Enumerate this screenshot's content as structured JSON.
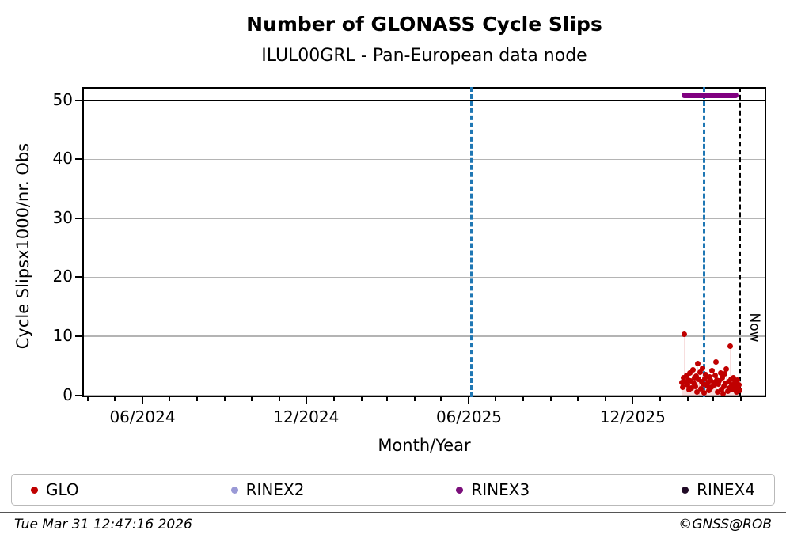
{
  "title": "Number of GLONASS Cycle Slips",
  "subtitle": "ILUL00GRL - Pan-European data node",
  "now_label": "Now",
  "chart_data": {
    "type": "scatter",
    "title": "Number of GLONASS Cycle Slips",
    "subtitle": "ILUL00GRL - Pan-European data node",
    "xlabel": "Month/Year",
    "ylabel": "Cycle Slipsx1000/nr. Obs",
    "grid": "horizontal-gray",
    "legend_position": "bottom",
    "x_range": [
      "2024-03-26",
      "2026-04-29"
    ],
    "ylim": [
      -0.33,
      52.27
    ],
    "y_ticks": [
      0,
      10,
      20,
      30,
      40,
      50
    ],
    "x_ticks": [
      {
        "label": "06/2024",
        "date": "2024-06-01"
      },
      {
        "label": "12/2024",
        "date": "2024-12-01"
      },
      {
        "label": "06/2025",
        "date": "2025-06-01"
      },
      {
        "label": "12/2025",
        "date": "2025-12-01"
      }
    ],
    "hline": {
      "y": 50,
      "color": "#000000"
    },
    "vlines": [
      {
        "date": "2025-06-04",
        "color": "#1f77b4",
        "style": "dashed",
        "width": 3
      },
      {
        "date": "2026-02-19",
        "color": "#1f77b4",
        "style": "dashed",
        "width": 3
      },
      {
        "date": "2026-03-31",
        "color": "#000000",
        "style": "dashed",
        "width": 2.5,
        "label": "Now"
      }
    ],
    "rinex3_bar": {
      "start": "2026-01-25",
      "end": "2026-03-29",
      "y": 50.9,
      "color": "#800080"
    },
    "series": [
      {
        "name": "GLO",
        "color": "#c00000",
        "stem_color": "rgba(192,0,0,0.13)",
        "points": [
          [
            "2026-01-25",
            2.1
          ],
          [
            "2026-01-26",
            1.4
          ],
          [
            "2026-01-27",
            3.0
          ],
          [
            "2026-01-28",
            10.4
          ],
          [
            "2026-01-29",
            2.2
          ],
          [
            "2026-01-30",
            3.4
          ],
          [
            "2026-01-31",
            1.8
          ],
          [
            "2026-02-01",
            2.6
          ],
          [
            "2026-02-02",
            0.9
          ],
          [
            "2026-02-03",
            3.7
          ],
          [
            "2026-02-04",
            2.4
          ],
          [
            "2026-02-05",
            1.2
          ],
          [
            "2026-02-06",
            4.3
          ],
          [
            "2026-02-07",
            2.0
          ],
          [
            "2026-02-08",
            2.9
          ],
          [
            "2026-02-09",
            1.5
          ],
          [
            "2026-02-10",
            3.2
          ],
          [
            "2026-02-11",
            0.6
          ],
          [
            "2026-02-12",
            5.4
          ],
          [
            "2026-02-13",
            2.7
          ],
          [
            "2026-02-14",
            3.9
          ],
          [
            "2026-02-15",
            1.1
          ],
          [
            "2026-02-16",
            2.3
          ],
          [
            "2026-02-17",
            4.6
          ],
          [
            "2026-02-18",
            1.9
          ],
          [
            "2026-02-19",
            0.4
          ],
          [
            "2026-02-20",
            2.8
          ],
          [
            "2026-02-21",
            3.5
          ],
          [
            "2026-02-22",
            1.6
          ],
          [
            "2026-02-23",
            2.1
          ],
          [
            "2026-02-24",
            0.8
          ],
          [
            "2026-02-25",
            3.1
          ],
          [
            "2026-02-26",
            2.5
          ],
          [
            "2026-02-27",
            1.3
          ],
          [
            "2026-02-28",
            4.1
          ],
          [
            "2026-03-01",
            2.2
          ],
          [
            "2026-03-02",
            1.7
          ],
          [
            "2026-03-03",
            3.3
          ],
          [
            "2026-03-04",
            5.7
          ],
          [
            "2026-03-05",
            2.6
          ],
          [
            "2026-03-06",
            0.5
          ],
          [
            "2026-03-07",
            1.9
          ],
          [
            "2026-03-08",
            2.4
          ],
          [
            "2026-03-09",
            3.8
          ],
          [
            "2026-03-10",
            1.0
          ],
          [
            "2026-03-11",
            2.9
          ],
          [
            "2026-03-12",
            0.3
          ],
          [
            "2026-03-13",
            1.5
          ],
          [
            "2026-03-14",
            3.6
          ],
          [
            "2026-03-15",
            2.0
          ],
          [
            "2026-03-16",
            4.4
          ],
          [
            "2026-03-17",
            0.7
          ],
          [
            "2026-03-18",
            2.3
          ],
          [
            "2026-03-19",
            1.2
          ],
          [
            "2026-03-20",
            8.3
          ],
          [
            "2026-03-21",
            2.7
          ],
          [
            "2026-03-22",
            1.8
          ],
          [
            "2026-03-23",
            0.9
          ],
          [
            "2026-03-24",
            3.0
          ],
          [
            "2026-03-25",
            2.1
          ],
          [
            "2026-03-26",
            1.4
          ],
          [
            "2026-03-27",
            0.6
          ],
          [
            "2026-03-28",
            2.5
          ],
          [
            "2026-03-29",
            1.1
          ],
          [
            "2026-03-30",
            1.7
          ],
          [
            "2026-03-31",
            0.8
          ]
        ]
      }
    ]
  },
  "legend": {
    "items": [
      {
        "label": "GLO",
        "color": "#c00000"
      },
      {
        "label": "RINEX2",
        "color": "#9a99d6"
      },
      {
        "label": "RINEX3",
        "color": "#7b0f7b"
      },
      {
        "label": "RINEX4",
        "color": "#200a26"
      }
    ]
  },
  "footer": {
    "timestamp": "Tue Mar 31 12:47:16 2026",
    "credit": "©GNSS@ROB"
  }
}
